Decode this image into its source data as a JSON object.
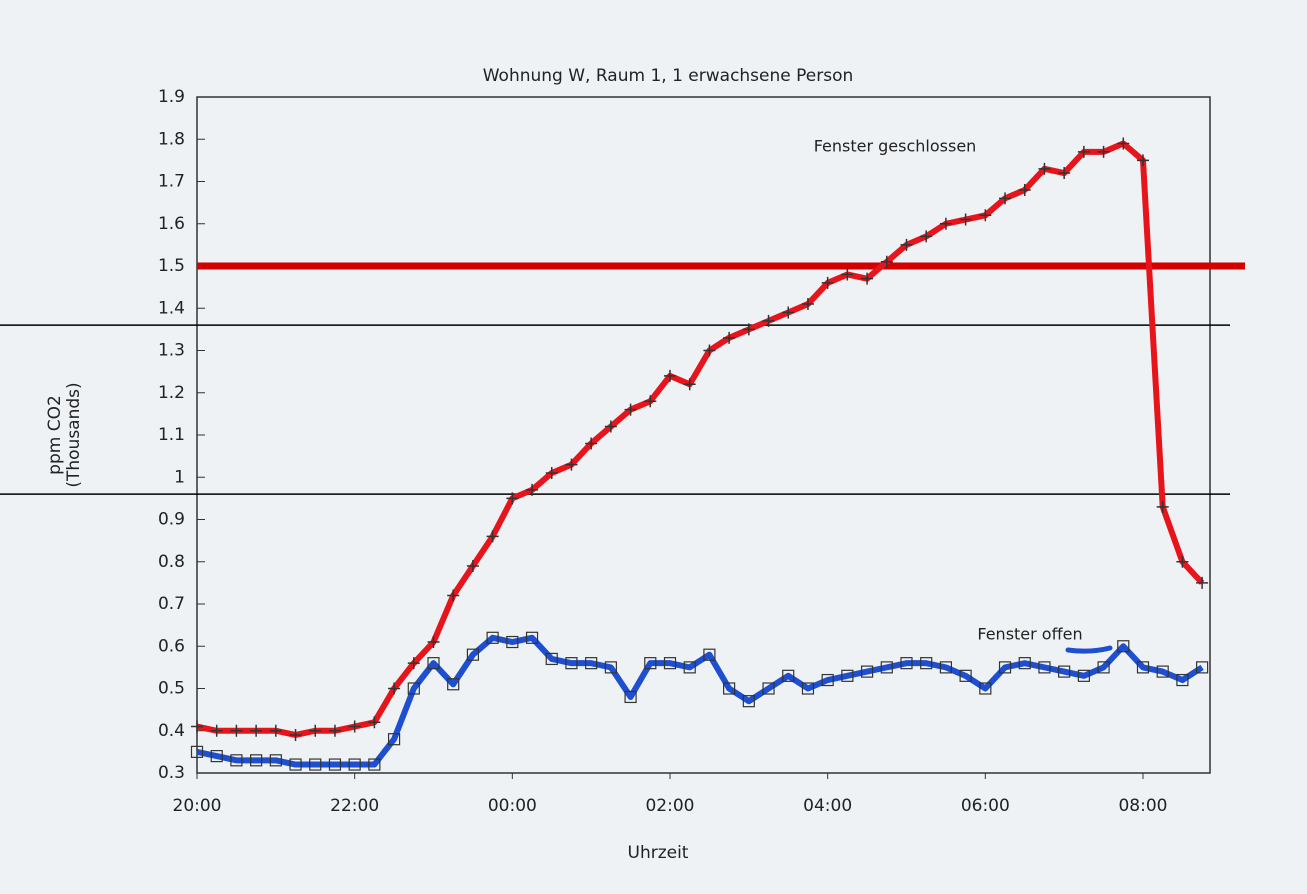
{
  "chart_data": {
    "type": "line",
    "title": "Wohnung W, Raum 1, 1 erwachsene Person",
    "xlabel": "Uhrzeit",
    "ylabel": [
      "ppm CO2",
      "(Thousands)"
    ],
    "x": [
      20,
      20.25,
      20.5,
      20.75,
      21,
      21.25,
      21.5,
      21.75,
      22,
      22.25,
      22.5,
      22.75,
      23,
      23.25,
      23.5,
      23.75,
      24,
      24.25,
      24.5,
      24.75,
      25,
      25.25,
      25.5,
      25.75,
      26,
      26.25,
      26.5,
      26.75,
      27,
      27.25,
      27.5,
      27.75,
      28,
      28.25,
      28.5,
      28.75,
      29,
      29.25,
      29.5,
      29.75,
      30,
      30.25,
      30.5,
      30.75,
      31,
      31.25,
      31.5,
      31.75,
      32,
      32.25,
      32.5,
      32.75
    ],
    "series": [
      {
        "name": "Fenster geschlossen",
        "color": "#e8141c",
        "marker": "plus",
        "values": [
          0.41,
          0.4,
          0.4,
          0.4,
          0.4,
          0.39,
          0.4,
          0.4,
          0.41,
          0.42,
          0.5,
          0.56,
          0.61,
          0.72,
          0.79,
          0.86,
          0.95,
          0.97,
          1.01,
          1.03,
          1.08,
          1.12,
          1.16,
          1.18,
          1.24,
          1.22,
          1.3,
          1.33,
          1.35,
          1.37,
          1.39,
          1.41,
          1.46,
          1.48,
          1.47,
          1.51,
          1.55,
          1.57,
          1.6,
          1.61,
          1.62,
          1.66,
          1.68,
          1.73,
          1.72,
          1.77,
          1.77,
          1.79,
          1.75,
          0.93,
          0.8,
          0.75
        ]
      },
      {
        "name": "Fenster offen",
        "color": "#1d4fd0",
        "marker": "square",
        "values": [
          0.35,
          0.34,
          0.33,
          0.33,
          0.33,
          0.32,
          0.32,
          0.32,
          0.32,
          0.32,
          0.38,
          0.5,
          0.56,
          0.51,
          0.58,
          0.62,
          0.61,
          0.62,
          0.57,
          0.56,
          0.56,
          0.55,
          0.48,
          0.56,
          0.56,
          0.55,
          0.58,
          0.5,
          0.47,
          0.5,
          0.53,
          0.5,
          0.52,
          0.53,
          0.54,
          0.55,
          0.56,
          0.56,
          0.55,
          0.53,
          0.5,
          0.55,
          0.56,
          0.55,
          0.54,
          0.53,
          0.55,
          0.6,
          0.55,
          0.54,
          0.52,
          0.55
        ]
      }
    ],
    "xlim": [
      20,
      32.85
    ],
    "xticks": [
      {
        "value": 20,
        "label": "20:00"
      },
      {
        "value": 22,
        "label": "22:00"
      },
      {
        "value": 24,
        "label": "00:00"
      },
      {
        "value": 26,
        "label": "02:00"
      },
      {
        "value": 28,
        "label": "04:00"
      },
      {
        "value": 30,
        "label": "06:00"
      },
      {
        "value": 32,
        "label": "08:00"
      }
    ],
    "ylim": [
      0.3,
      1.9
    ],
    "yticks": [
      0.3,
      0.4,
      0.5,
      0.6,
      0.7,
      0.8,
      0.9,
      1,
      1.1,
      1.2,
      1.3,
      1.4,
      1.5,
      1.6,
      1.7,
      1.8,
      1.9
    ],
    "hlines": [
      {
        "value": 1.5,
        "color": "#d40000"
      },
      {
        "value": 1.36,
        "color": "#000000"
      },
      {
        "value": 0.96,
        "color": "#000000"
      }
    ],
    "grid": false
  }
}
